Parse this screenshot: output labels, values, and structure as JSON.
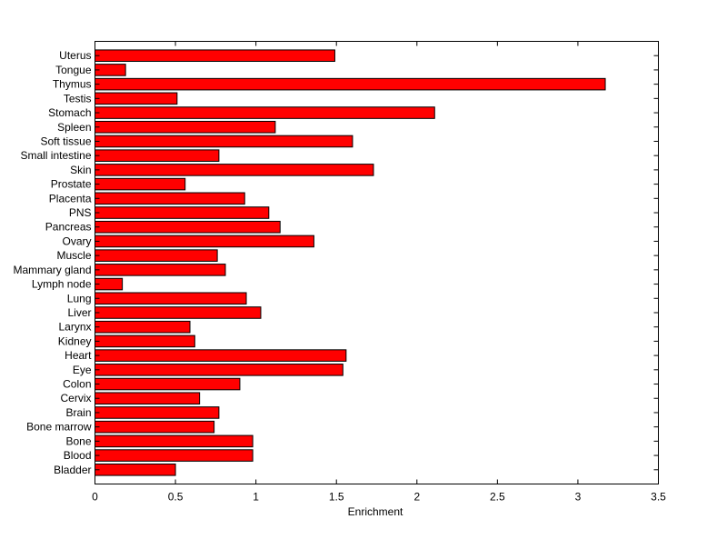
{
  "chart_data": {
    "type": "bar",
    "orientation": "horizontal",
    "title": "",
    "xlabel": "Enrichment",
    "ylabel": "",
    "xlim": [
      0,
      3.5
    ],
    "xticks": [
      0,
      0.5,
      1,
      1.5,
      2,
      2.5,
      3,
      3.5
    ],
    "xtick_labels": [
      "0",
      "0.5",
      "1",
      "1.5",
      "2",
      "2.5",
      "3",
      "3.5"
    ],
    "grid": false,
    "bar_color": "#ff0000",
    "categories": [
      "Uterus",
      "Tongue",
      "Thymus",
      "Testis",
      "Stomach",
      "Spleen",
      "Soft tissue",
      "Small intestine",
      "Skin",
      "Prostate",
      "Placenta",
      "PNS",
      "Pancreas",
      "Ovary",
      "Muscle",
      "Mammary gland",
      "Lymph node",
      "Lung",
      "Liver",
      "Larynx",
      "Kidney",
      "Heart",
      "Eye",
      "Colon",
      "Cervix",
      "Brain",
      "Bone marrow",
      "Bone",
      "Blood",
      "Bladder"
    ],
    "values": [
      1.49,
      0.19,
      3.17,
      0.51,
      2.11,
      1.12,
      1.6,
      0.77,
      1.73,
      0.56,
      0.93,
      1.08,
      1.15,
      1.36,
      0.76,
      0.81,
      0.17,
      0.94,
      1.03,
      0.59,
      0.62,
      1.56,
      1.54,
      0.9,
      0.65,
      0.77,
      0.74,
      0.98,
      0.98,
      0.5
    ]
  }
}
